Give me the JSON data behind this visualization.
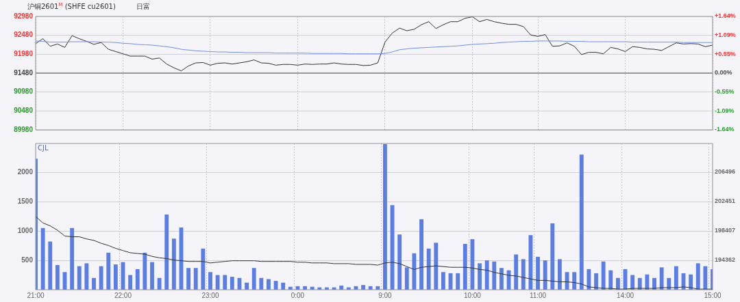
{
  "chart_data": [
    {
      "type": "line",
      "title": "沪铜2601$^{M}$ (SHFE cu2601)",
      "subtitle": "日富",
      "categories": [
        null,
        null,
        null,
        null,
        null,
        null,
        null,
        null,
        null,
        null,
        null,
        null,
        null,
        null,
        null,
        null,
        null,
        null,
        null,
        null,
        null,
        null,
        null,
        null,
        null,
        null,
        null,
        null,
        null,
        null,
        null,
        null,
        null,
        null,
        null,
        null,
        null,
        null,
        null,
        null,
        null,
        null,
        null,
        null,
        null,
        null,
        null,
        null,
        null,
        null,
        null,
        null,
        null,
        null,
        null,
        null,
        null,
        null,
        null,
        null,
        null,
        null,
        null,
        null,
        null,
        null,
        null,
        null,
        null,
        null,
        null,
        null,
        null,
        null,
        null,
        null,
        null,
        null,
        null,
        null,
        null,
        null,
        null,
        null,
        null,
        null,
        null,
        null,
        null,
        null,
        null,
        null,
        null,
        null
      ],
      "series": [
        {
          "color": "#6f8fe8",
          "values": [
            92330,
            92320,
            92300,
            92300,
            92300,
            92310,
            92310,
            92310,
            92310,
            92300,
            92300,
            92290,
            92270,
            92260,
            92240,
            92230,
            92220,
            92200,
            92180,
            92150,
            92110,
            92090,
            92070,
            92060,
            92050,
            92040,
            92040,
            92030,
            92030,
            92020,
            92020,
            92020,
            92020,
            92010,
            92010,
            92010,
            92010,
            92010,
            92000,
            92000,
            92000,
            92000,
            92000,
            91990,
            91990,
            91990,
            91990,
            91990,
            92000,
            92040,
            92100,
            92120,
            92140,
            92150,
            92160,
            92170,
            92180,
            92190,
            92200,
            92220,
            92240,
            92250,
            92260,
            92270,
            92290,
            92300,
            92310,
            92320,
            92320,
            92330,
            92330,
            92330,
            92330,
            92320,
            92320,
            92320,
            92310,
            92310,
            92310,
            92310,
            92310,
            92310,
            92300,
            92300,
            92300,
            92300,
            92300,
            92300,
            92300,
            92290,
            92290,
            92290,
            92290,
            92290
          ]
        },
        {
          "color": "#333333",
          "values": [
            92260,
            92390,
            92190,
            92250,
            92160,
            92470,
            92390,
            92320,
            92240,
            92290,
            92110,
            92050,
            91990,
            91930,
            91930,
            91930,
            91850,
            91880,
            91720,
            91620,
            91540,
            91670,
            91750,
            91760,
            91690,
            91740,
            91750,
            91720,
            91750,
            91780,
            91830,
            91750,
            91740,
            91690,
            91710,
            91710,
            91690,
            91720,
            91710,
            91720,
            91720,
            91750,
            91720,
            91710,
            91710,
            91680,
            91690,
            91750,
            92300,
            92540,
            92670,
            92600,
            92640,
            92760,
            92840,
            92660,
            92760,
            92840,
            92840,
            92930,
            92970,
            92840,
            92900,
            92840,
            92800,
            92770,
            92770,
            92710,
            92490,
            92450,
            92500,
            92190,
            92200,
            92280,
            92190,
            91970,
            92030,
            92030,
            91990,
            92160,
            92120,
            92050,
            92180,
            92160,
            92120,
            92110,
            92080,
            92180,
            92280,
            92250,
            92260,
            92250,
            92180,
            92220
          ]
        }
      ],
      "ylim": [
        89980,
        92980
      ],
      "yticks": [
        89980,
        90480,
        90980,
        91480,
        91980,
        92480,
        92980
      ],
      "y2lim": [
        -1.64,
        1.64
      ],
      "y2ticks": [
        {
          "value": -1.64,
          "label": "-1.64%"
        },
        {
          "value": -1.09,
          "label": "-1.09%"
        },
        {
          "value": -0.55,
          "label": "-0.55%"
        },
        {
          "value": 0,
          "label": "0.00%"
        },
        {
          "value": 0.55,
          "label": "+0.55%"
        },
        {
          "value": 1.09,
          "label": "+1.09%"
        },
        {
          "value": 1.64,
          "label": "+1.64%"
        }
      ],
      "ref_lines": [
        {
          "axis": "y",
          "value": 91480,
          "color": "#999999"
        }
      ],
      "grid": true,
      "tick_labels": "y"
    },
    {
      "type": "bar",
      "title": "CJL",
      "categories": [
        "21:00",
        null,
        null,
        null,
        null,
        null,
        null,
        null,
        null,
        null,
        null,
        null,
        "22:00",
        null,
        null,
        null,
        null,
        null,
        null,
        null,
        null,
        null,
        null,
        null,
        "23:00",
        null,
        null,
        null,
        null,
        null,
        null,
        null,
        null,
        null,
        null,
        null,
        "0:00",
        null,
        null,
        null,
        null,
        null,
        null,
        null,
        null,
        null,
        null,
        null,
        "9:00",
        null,
        null,
        null,
        null,
        null,
        null,
        null,
        null,
        null,
        null,
        null,
        "10:00",
        null,
        null,
        null,
        null,
        null,
        null,
        null,
        null,
        "11:00",
        null,
        null,
        null,
        null,
        null,
        null,
        null,
        null,
        null,
        null,
        null,
        "14:00",
        null,
        null,
        null,
        null,
        null,
        null,
        null,
        null,
        null,
        null,
        null,
        "15:00"
      ],
      "series": [
        {
          "type": "bar",
          "color": "#5a7ee6",
          "values": [
            2230,
            1050,
            820,
            420,
            300,
            1050,
            400,
            450,
            200,
            400,
            630,
            430,
            470,
            250,
            350,
            630,
            470,
            200,
            1280,
            870,
            1060,
            370,
            370,
            700,
            300,
            250,
            250,
            220,
            200,
            120,
            370,
            200,
            180,
            150,
            120,
            50,
            60,
            60,
            50,
            40,
            40,
            40,
            70,
            40,
            60,
            80,
            60,
            60,
            2480,
            1440,
            940,
            380,
            620,
            1200,
            700,
            800,
            300,
            280,
            280,
            780,
            860,
            450,
            500,
            480,
            370,
            330,
            600,
            520,
            930,
            560,
            500,
            1130,
            520,
            300,
            300,
            2300,
            350,
            280,
            480,
            330,
            200,
            350,
            250,
            200,
            260,
            200,
            380,
            200,
            400,
            280,
            260,
            450,
            400,
            350
          ]
        },
        {
          "type": "line",
          "axis": "y2",
          "color": "#333333",
          "values": [
            200400,
            199500,
            199100,
            198500,
            197700,
            197600,
            197600,
            197300,
            197100,
            196700,
            196400,
            196000,
            195700,
            195400,
            195300,
            195200,
            194900,
            194700,
            194600,
            194400,
            194300,
            194200,
            194200,
            194200,
            194000,
            194100,
            194200,
            194300,
            194300,
            194300,
            194300,
            194200,
            194200,
            194200,
            194200,
            194200,
            194100,
            194100,
            194000,
            194000,
            194000,
            193900,
            193900,
            193900,
            193800,
            193800,
            193800,
            193700,
            194000,
            194100,
            193900,
            193500,
            193100,
            193400,
            193500,
            193600,
            193500,
            193400,
            193400,
            193400,
            193300,
            193100,
            193000,
            192700,
            192500,
            192300,
            192200,
            192000,
            191800,
            191600,
            191600,
            191500,
            191400,
            191400,
            191300,
            191100,
            190700,
            190600,
            190500,
            190500,
            190400,
            190400,
            190500,
            190500,
            190500,
            190500,
            190600,
            190600,
            190600,
            190700,
            190600,
            190400,
            190400,
            190400
          ]
        }
      ],
      "ylim": [
        0,
        2490
      ],
      "yticks": [
        500,
        1000,
        1500,
        2000
      ],
      "y2lim": [
        190317,
        210427
      ],
      "y2ticks": [
        194362,
        198407,
        202451,
        206496
      ],
      "grid": true
    }
  ]
}
